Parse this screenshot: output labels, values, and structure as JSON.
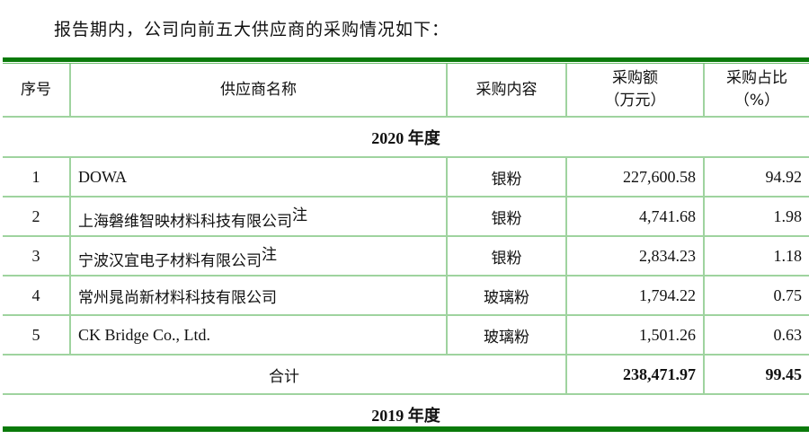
{
  "intro": "报告期内，公司向前五大供应商的采购情况如下：",
  "headers": {
    "no": "序号",
    "name": "供应商名称",
    "content": "采购内容",
    "amount": "采购额（万元）",
    "amount_l1": "采购额",
    "amount_l2": "（万元）",
    "ratio_l1": "采购占比",
    "ratio_l2": "（%）"
  },
  "year2020": "2020 年度",
  "rows": [
    {
      "no": "1",
      "name": "DOWA",
      "note": "",
      "content": "银粉",
      "amount": "227,600.58",
      "ratio": "94.92"
    },
    {
      "no": "2",
      "name": "上海磐维智映材料科技有限公司",
      "note": "注",
      "content": "银粉",
      "amount": "4,741.68",
      "ratio": "1.98"
    },
    {
      "no": "3",
      "name": "宁波汉宜电子材料有限公司",
      "note": "注",
      "content": "银粉",
      "amount": "2,834.23",
      "ratio": "1.18"
    },
    {
      "no": "4",
      "name": "常州晁尚新材料科技有限公司",
      "note": "",
      "content": "玻璃粉",
      "amount": "1,794.22",
      "ratio": "0.75"
    },
    {
      "no": "5",
      "name": "CK Bridge Co., Ltd.",
      "note": "",
      "content": "玻璃粉",
      "amount": "1,501.26",
      "ratio": "0.63"
    }
  ],
  "total": {
    "label": "合计",
    "amount": "238,471.97",
    "ratio": "99.45"
  },
  "year2019": "2019 年度"
}
